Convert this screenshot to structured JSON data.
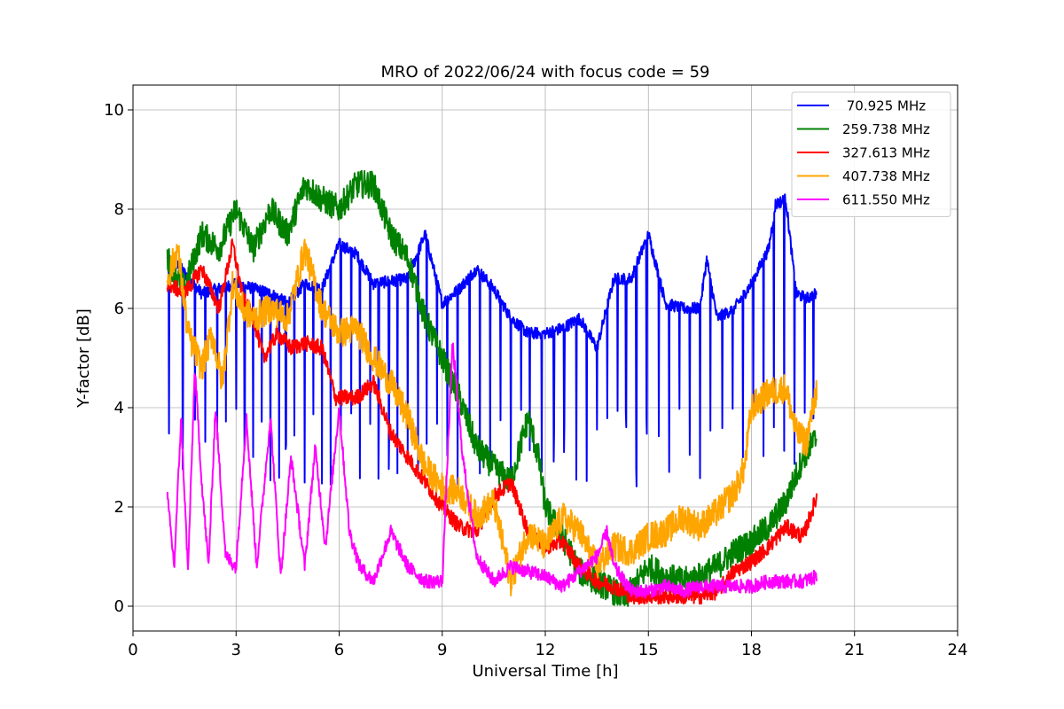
{
  "chart_data": {
    "type": "line",
    "title": "MRO of 2022/06/24 with focus code = 59",
    "xlabel": "Universal Time [h]",
    "ylabel": "Y-factor [dB]",
    "xlim": [
      0,
      24
    ],
    "ylim": [
      -0.5,
      10.5
    ],
    "xticks": [
      0,
      3,
      6,
      9,
      12,
      15,
      18,
      21,
      24
    ],
    "yticks": [
      0,
      2,
      4,
      6,
      8,
      10
    ],
    "grid": true,
    "legend_position": "top-right",
    "series": [
      {
        "name": " 70.925 MHz",
        "color": "#0000ff",
        "points": [
          [
            1.0,
            7.0
          ],
          [
            1.4,
            6.8
          ],
          [
            2.0,
            6.3
          ],
          [
            3.0,
            6.5
          ],
          [
            4.0,
            6.3
          ],
          [
            4.5,
            6.1
          ],
          [
            5.0,
            6.5
          ],
          [
            5.5,
            6.4
          ],
          [
            6.0,
            7.3
          ],
          [
            6.5,
            7.1
          ],
          [
            7.0,
            6.5
          ],
          [
            8.0,
            6.6
          ],
          [
            8.5,
            7.5
          ],
          [
            9.0,
            6.1
          ],
          [
            9.5,
            6.4
          ],
          [
            10.0,
            6.8
          ],
          [
            10.5,
            6.4
          ],
          [
            11.0,
            5.8
          ],
          [
            11.5,
            5.5
          ],
          [
            12.0,
            5.5
          ],
          [
            12.5,
            5.6
          ],
          [
            13.0,
            5.8
          ],
          [
            13.5,
            5.2
          ],
          [
            14.0,
            6.6
          ],
          [
            14.5,
            6.6
          ],
          [
            15.0,
            7.5
          ],
          [
            15.5,
            6.1
          ],
          [
            16.0,
            6.0
          ],
          [
            16.5,
            6.0
          ],
          [
            16.7,
            7.0
          ],
          [
            17.0,
            5.8
          ],
          [
            17.5,
            6.0
          ],
          [
            18.0,
            6.5
          ],
          [
            18.5,
            7.2
          ],
          [
            18.7,
            8.1
          ],
          [
            19.0,
            8.2
          ],
          [
            19.3,
            6.3
          ],
          [
            19.6,
            6.2
          ],
          [
            19.9,
            6.3
          ]
        ],
        "dips": [
          1.05,
          1.45,
          1.8,
          2.1,
          2.45,
          2.7,
          3.0,
          3.25,
          3.5,
          3.75,
          4.0,
          4.25,
          4.45,
          4.7,
          5.0,
          5.25,
          5.5,
          5.75,
          6.05,
          6.35,
          6.6,
          6.9,
          7.15,
          7.45,
          7.7,
          8.0,
          8.3,
          8.55,
          8.85,
          9.15,
          9.45,
          9.8,
          10.1,
          10.4,
          10.7,
          11.0,
          11.3,
          11.55,
          11.9,
          12.25,
          12.55,
          12.9,
          13.2,
          13.5,
          13.8,
          14.1,
          14.35,
          14.65,
          14.95,
          15.3,
          15.6,
          15.9,
          16.2,
          16.5,
          16.8,
          17.15,
          17.45,
          17.75,
          18.05,
          18.35,
          18.65,
          18.95,
          19.25,
          19.55,
          19.8
        ],
        "dip_level": 3.2
      },
      {
        "name": "259.738 MHz",
        "color": "#008000",
        "points": [
          [
            1.0,
            7.0
          ],
          [
            1.5,
            6.4
          ],
          [
            2.0,
            7.5
          ],
          [
            2.5,
            7.2
          ],
          [
            3.0,
            8.0
          ],
          [
            3.5,
            7.2
          ],
          [
            4.0,
            8.0
          ],
          [
            4.5,
            7.5
          ],
          [
            5.0,
            8.5
          ],
          [
            5.5,
            8.2
          ],
          [
            6.0,
            8.0
          ],
          [
            6.5,
            8.5
          ],
          [
            7.0,
            8.5
          ],
          [
            7.5,
            7.5
          ],
          [
            8.0,
            7.0
          ],
          [
            8.5,
            5.8
          ],
          [
            9.0,
            5.0
          ],
          [
            9.5,
            4.2
          ],
          [
            10.0,
            3.2
          ],
          [
            10.5,
            2.8
          ],
          [
            11.0,
            2.5
          ],
          [
            11.3,
            3.3
          ],
          [
            11.5,
            3.8
          ],
          [
            11.8,
            3.0
          ],
          [
            12.0,
            2.0
          ],
          [
            12.5,
            1.4
          ],
          [
            13.0,
            0.7
          ],
          [
            13.5,
            0.5
          ],
          [
            14.0,
            0.3
          ],
          [
            14.3,
            0.15
          ],
          [
            14.6,
            0.4
          ],
          [
            15.0,
            0.8
          ],
          [
            15.5,
            0.6
          ],
          [
            16.0,
            0.5
          ],
          [
            16.5,
            0.6
          ],
          [
            17.0,
            0.8
          ],
          [
            17.5,
            1.1
          ],
          [
            18.0,
            1.3
          ],
          [
            18.5,
            1.6
          ],
          [
            19.0,
            2.1
          ],
          [
            19.5,
            3.0
          ],
          [
            19.9,
            3.4
          ]
        ]
      },
      {
        "name": "327.613 MHz",
        "color": "#ff0000",
        "points": [
          [
            1.0,
            6.5
          ],
          [
            1.5,
            6.3
          ],
          [
            2.0,
            6.8
          ],
          [
            2.5,
            6.0
          ],
          [
            2.9,
            7.3
          ],
          [
            3.2,
            6.2
          ],
          [
            3.5,
            5.8
          ],
          [
            3.8,
            5.0
          ],
          [
            4.2,
            5.5
          ],
          [
            4.6,
            5.2
          ],
          [
            5.0,
            5.3
          ],
          [
            5.5,
            5.2
          ],
          [
            5.9,
            4.2
          ],
          [
            6.5,
            4.2
          ],
          [
            7.0,
            4.5
          ],
          [
            7.5,
            3.5
          ],
          [
            8.0,
            3.0
          ],
          [
            8.5,
            2.5
          ],
          [
            9.0,
            2.0
          ],
          [
            9.5,
            1.6
          ],
          [
            10.0,
            1.5
          ],
          [
            10.5,
            2.2
          ],
          [
            11.0,
            2.5
          ],
          [
            11.5,
            1.5
          ],
          [
            12.0,
            1.2
          ],
          [
            12.5,
            1.3
          ],
          [
            13.0,
            0.8
          ],
          [
            13.5,
            0.5
          ],
          [
            14.0,
            0.4
          ],
          [
            14.5,
            0.2
          ],
          [
            15.0,
            0.2
          ],
          [
            15.5,
            0.2
          ],
          [
            16.0,
            0.2
          ],
          [
            16.5,
            0.2
          ],
          [
            17.0,
            0.3
          ],
          [
            17.5,
            0.7
          ],
          [
            18.0,
            0.9
          ],
          [
            18.5,
            1.2
          ],
          [
            19.0,
            1.6
          ],
          [
            19.5,
            1.4
          ],
          [
            19.9,
            2.2
          ]
        ]
      },
      {
        "name": "407.738 MHz",
        "color": "#ffa500",
        "points": [
          [
            1.0,
            6.6
          ],
          [
            1.3,
            7.2
          ],
          [
            1.6,
            5.5
          ],
          [
            2.0,
            4.8
          ],
          [
            2.3,
            5.5
          ],
          [
            2.6,
            4.5
          ],
          [
            2.9,
            6.5
          ],
          [
            3.2,
            6.0
          ],
          [
            3.5,
            5.8
          ],
          [
            4.0,
            6.0
          ],
          [
            4.5,
            5.8
          ],
          [
            5.0,
            7.2
          ],
          [
            5.5,
            6.0
          ],
          [
            6.0,
            5.5
          ],
          [
            6.5,
            5.6
          ],
          [
            7.0,
            5.0
          ],
          [
            7.5,
            4.5
          ],
          [
            8.0,
            3.8
          ],
          [
            8.5,
            2.8
          ],
          [
            9.0,
            2.4
          ],
          [
            9.5,
            2.3
          ],
          [
            10.0,
            1.8
          ],
          [
            10.5,
            2.1
          ],
          [
            11.0,
            0.5
          ],
          [
            11.5,
            1.5
          ],
          [
            12.0,
            1.2
          ],
          [
            12.5,
            1.8
          ],
          [
            13.0,
            1.5
          ],
          [
            13.5,
            0.8
          ],
          [
            14.0,
            1.2
          ],
          [
            14.5,
            1.1
          ],
          [
            15.0,
            1.4
          ],
          [
            15.5,
            1.5
          ],
          [
            16.0,
            1.8
          ],
          [
            16.5,
            1.6
          ],
          [
            17.0,
            1.9
          ],
          [
            17.5,
            2.3
          ],
          [
            17.8,
            2.8
          ],
          [
            18.0,
            4.0
          ],
          [
            18.5,
            4.3
          ],
          [
            19.0,
            4.4
          ],
          [
            19.3,
            3.5
          ],
          [
            19.6,
            3.3
          ],
          [
            19.9,
            4.4
          ]
        ]
      },
      {
        "name": "611.550 MHz",
        "color": "#ff00ff",
        "points": [
          [
            1.0,
            2.2
          ],
          [
            1.2,
            0.8
          ],
          [
            1.4,
            3.8
          ],
          [
            1.6,
            0.7
          ],
          [
            1.8,
            4.8
          ],
          [
            2.0,
            2.5
          ],
          [
            2.2,
            0.8
          ],
          [
            2.4,
            4.0
          ],
          [
            2.7,
            1.0
          ],
          [
            3.0,
            0.8
          ],
          [
            3.3,
            3.8
          ],
          [
            3.6,
            0.8
          ],
          [
            4.0,
            3.8
          ],
          [
            4.3,
            0.6
          ],
          [
            4.6,
            3.0
          ],
          [
            5.0,
            0.8
          ],
          [
            5.3,
            3.2
          ],
          [
            5.6,
            1.2
          ],
          [
            6.0,
            4.0
          ],
          [
            6.3,
            1.5
          ],
          [
            6.6,
            0.8
          ],
          [
            7.0,
            0.5
          ],
          [
            7.5,
            1.5
          ],
          [
            8.0,
            0.8
          ],
          [
            8.5,
            0.5
          ],
          [
            9.0,
            0.5
          ],
          [
            9.3,
            5.3
          ],
          [
            9.6,
            3.0
          ],
          [
            10.0,
            1.0
          ],
          [
            10.5,
            0.5
          ],
          [
            11.0,
            0.8
          ],
          [
            11.5,
            0.7
          ],
          [
            12.0,
            0.6
          ],
          [
            12.5,
            0.4
          ],
          [
            13.0,
            0.7
          ],
          [
            13.5,
            1.0
          ],
          [
            13.8,
            1.5
          ],
          [
            14.0,
            0.8
          ],
          [
            14.5,
            0.3
          ],
          [
            15.0,
            0.3
          ],
          [
            15.5,
            0.4
          ],
          [
            16.0,
            0.3
          ],
          [
            16.5,
            0.4
          ],
          [
            17.0,
            0.4
          ],
          [
            17.5,
            0.4
          ],
          [
            18.0,
            0.4
          ],
          [
            18.5,
            0.5
          ],
          [
            19.0,
            0.5
          ],
          [
            19.5,
            0.5
          ],
          [
            19.9,
            0.6
          ]
        ]
      }
    ]
  }
}
